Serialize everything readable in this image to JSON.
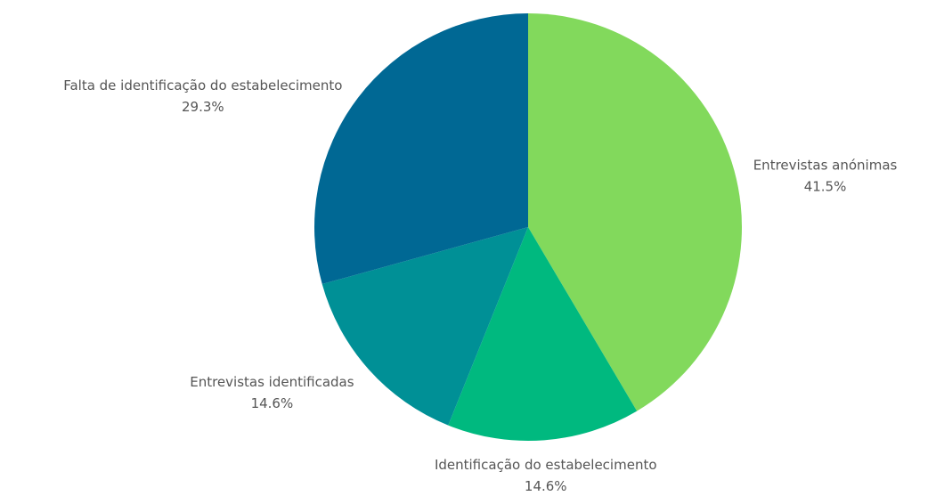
{
  "chart_data": {
    "type": "pie",
    "categories": [
      "Entrevistas anónimas",
      "Identificação do estabelecimento",
      "Entrevistas identificadas",
      "Falta de identificação do estabelecimento"
    ],
    "values": [
      41.5,
      14.6,
      14.6,
      29.3
    ],
    "value_labels": [
      "41.5%",
      "14.6%",
      "14.6%",
      "29.3%"
    ],
    "colors": [
      "#82d95c",
      "#00b97f",
      "#009096",
      "#006894"
    ]
  }
}
